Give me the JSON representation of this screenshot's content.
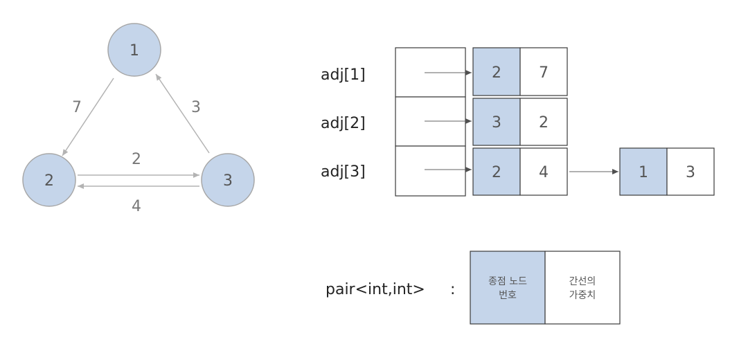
{
  "graph": {
    "nodes": [
      "1",
      "2",
      "3"
    ],
    "edges": [
      {
        "from": "1",
        "to": "2",
        "weight": "7"
      },
      {
        "from": "2",
        "to": "3",
        "weight": "2"
      },
      {
        "from": "3",
        "to": "1",
        "weight": "3"
      },
      {
        "from": "3",
        "to": "2",
        "weight": "4"
      }
    ]
  },
  "adjacency": {
    "rows": [
      {
        "label": "adj[1]",
        "entries": [
          {
            "node": "2",
            "weight": "7"
          }
        ]
      },
      {
        "label": "adj[2]",
        "entries": [
          {
            "node": "3",
            "weight": "2"
          }
        ]
      },
      {
        "label": "adj[3]",
        "entries": [
          {
            "node": "2",
            "weight": "4"
          },
          {
            "node": "1",
            "weight": "3"
          }
        ]
      }
    ]
  },
  "legend": {
    "type_label": "pair<int,int>",
    "separator": ":",
    "first_lines": [
      "종점 노드",
      "번호"
    ],
    "second_lines": [
      "간선의",
      "가중치"
    ]
  },
  "colors": {
    "node_fill": "#c5d5ea",
    "dest_cell_fill": "#c5d5ea"
  }
}
